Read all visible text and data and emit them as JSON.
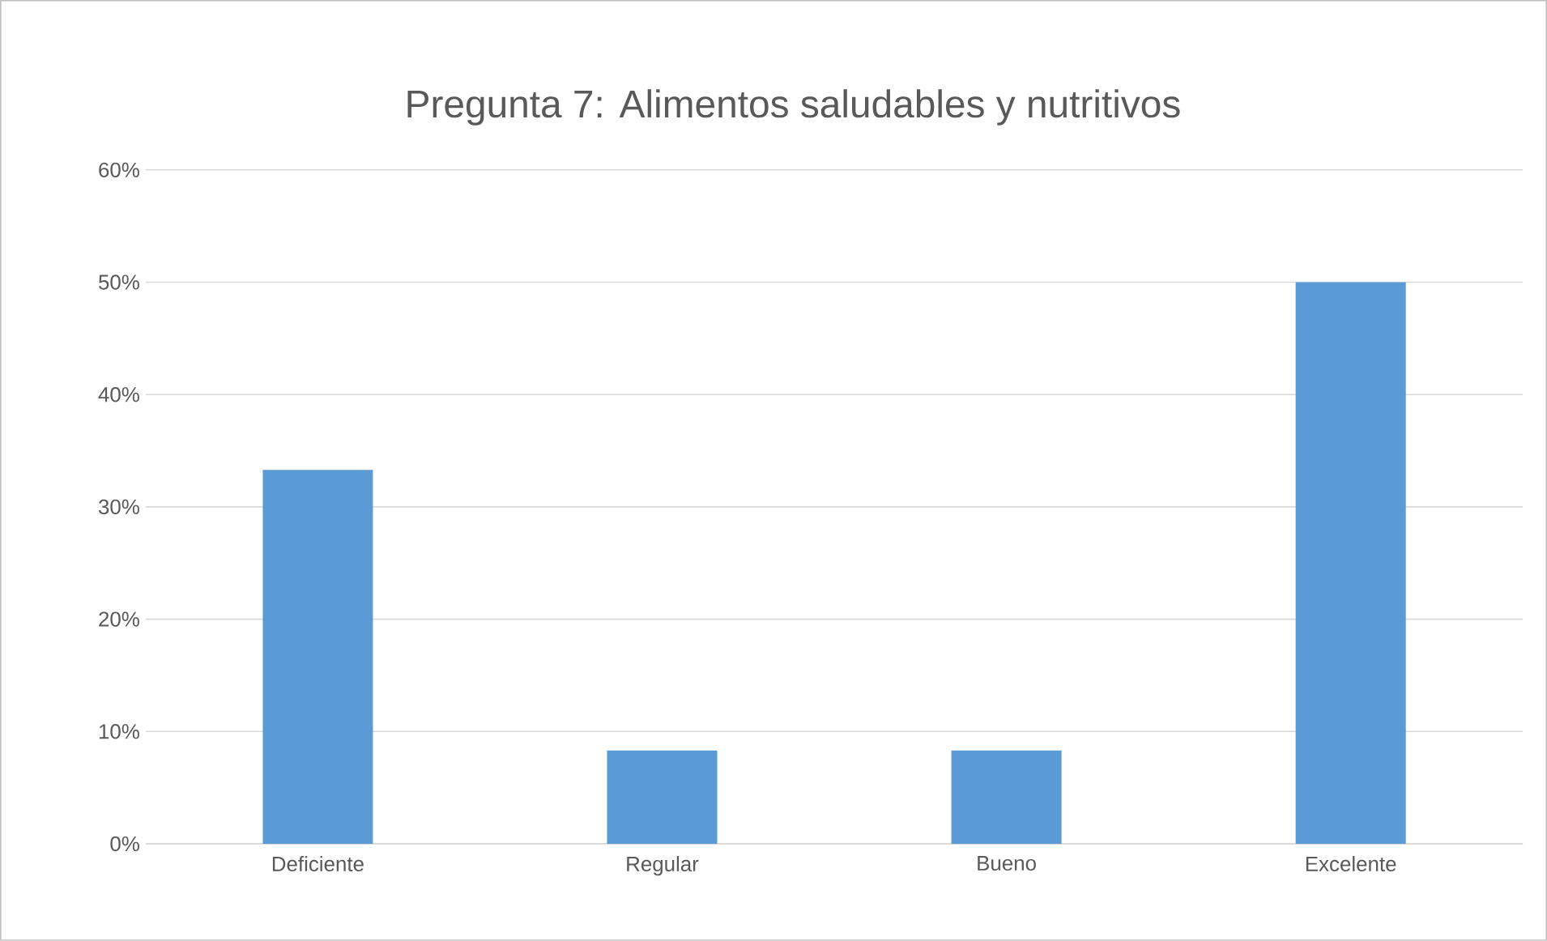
{
  "chart_data": {
    "type": "bar",
    "title": "Pregunta 7: Alimentos saludables y nutritivos",
    "categories": [
      "Deficiente",
      "Regular",
      "Bueno",
      "Excelente"
    ],
    "values": [
      33.3,
      8.3,
      8.3,
      50
    ],
    "color": "#5b9bd5",
    "ylim": [
      0,
      60
    ],
    "yticks": [
      {
        "value": 0,
        "label": "0%"
      },
      {
        "value": 10,
        "label": "10%"
      },
      {
        "value": 20,
        "label": "20%"
      },
      {
        "value": 30,
        "label": "30%"
      },
      {
        "value": 40,
        "label": "40%"
      },
      {
        "value": 50,
        "label": "50%"
      },
      {
        "value": 60,
        "label": "60%"
      }
    ],
    "grid": "y"
  }
}
